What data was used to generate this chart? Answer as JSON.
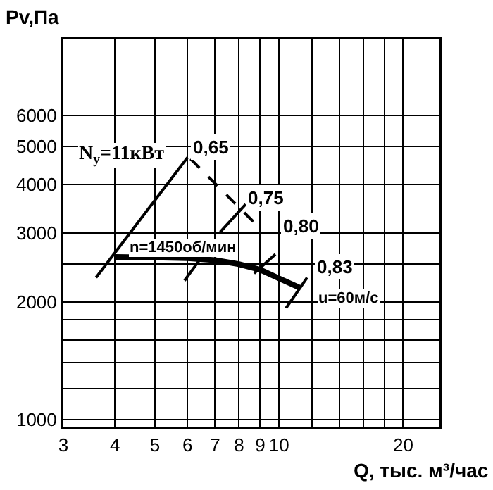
{
  "chart_data": {
    "type": "line",
    "xlabel": "Q, тыс. м³/час",
    "ylabel": "Pv,Па",
    "log": "xy",
    "grid": true,
    "marker": "none",
    "xlim": [
      3,
      24.5
    ],
    "ylim": [
      960,
      9400
    ],
    "xticks": [
      3,
      4,
      5,
      6,
      7,
      8,
      9,
      10,
      {
        "value": 12,
        "label": null
      },
      {
        "value": 14,
        "label": null
      },
      {
        "value": 16,
        "label": null
      },
      {
        "value": 18,
        "label": null
      },
      20
    ],
    "yticks": [
      1000,
      {
        "value": 1200,
        "label": null
      },
      {
        "value": 1400,
        "label": null
      },
      {
        "value": 1600,
        "label": null
      },
      {
        "value": 1800,
        "label": null
      },
      2000,
      {
        "value": 2500,
        "label": null
      },
      3000,
      4000,
      5000,
      6000
    ],
    "series": [
      {
        "color": "#000000",
        "line_style": "solid",
        "x": [
          4,
          5,
          6,
          7,
          8,
          9,
          10,
          11.2
        ],
        "values": [
          2610,
          2600,
          2590,
          2560,
          2500,
          2420,
          2300,
          2180
        ]
      },
      {
        "color": "#000000",
        "line_style": "solid",
        "x": [
          3.6,
          6.0
        ],
        "values": [
          2310,
          4690
        ]
      },
      {
        "color": "#000000",
        "line_style": "dashed",
        "x": [
          6.1,
          9.1
        ],
        "values": [
          4650,
          3050
        ]
      },
      {
        "color": "#000000",
        "line_style": "solid",
        "x": [
          7.2,
          8.3
        ],
        "values": [
          3020,
          3560
        ]
      },
      {
        "color": "#000000",
        "line_style": "solid",
        "x": [
          5.9,
          6.5
        ],
        "values": [
          2270,
          2610
        ]
      },
      {
        "color": "#000000",
        "line_style": "solid",
        "x": [
          8.7,
          9.8
        ],
        "values": [
          2370,
          2650
        ]
      },
      {
        "color": "#000000",
        "line_style": "solid",
        "x": [
          10.4,
          11.7
        ],
        "values": [
          1930,
          2310
        ]
      }
    ],
    "annotations": [
      "N$_{y}$=11кВт",
      {
        "text": "0,65",
        "x": 6.8,
        "y": 5000
      },
      {
        "text": "0,75",
        "x": 9.3,
        "y": 3700
      },
      {
        "text": "0,80",
        "x": 11.3,
        "y": 3120
      },
      "n=1450об/мин",
      {
        "text": "0,83",
        "x": 13.6,
        "y": 2470
      },
      "u=60м/с"
    ]
  }
}
